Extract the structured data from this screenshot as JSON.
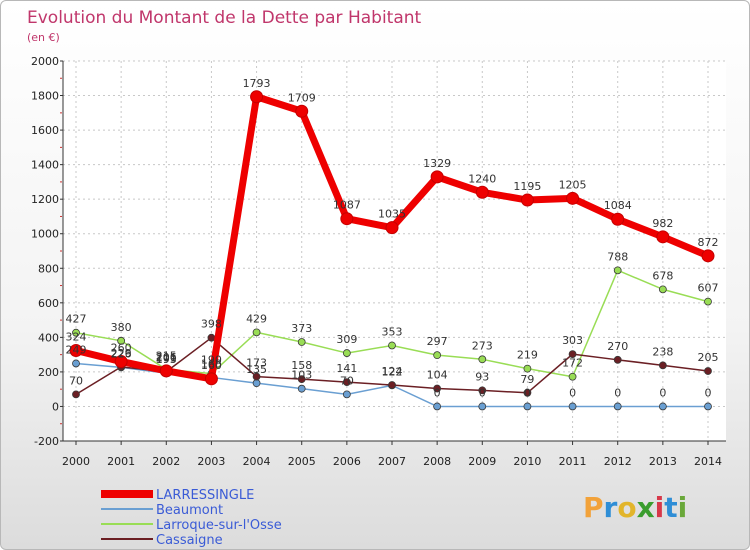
{
  "title": "Evolution du Montant de la Dette par Habitant",
  "subtitle": "(en €)",
  "brand": {
    "name": "Proxiti",
    "letters": [
      {
        "ch": "P",
        "color": "#f2a23a"
      },
      {
        "ch": "r",
        "color": "#2f8ed6"
      },
      {
        "ch": "o",
        "color": "#e2b52b"
      },
      {
        "ch": "x",
        "color": "#3a9d2e"
      },
      {
        "ch": "i",
        "color": "#d7384a"
      },
      {
        "ch": "t",
        "color": "#2f8ed6"
      },
      {
        "ch": "i",
        "color": "#6aa83a"
      }
    ]
  },
  "chart_data": {
    "type": "line",
    "title": "Evolution du Montant de la Dette par Habitant",
    "ylabel": "(en €)",
    "xlabel": "",
    "ylim": [
      -200,
      2000
    ],
    "yticks": [
      -200,
      0,
      200,
      400,
      600,
      800,
      1000,
      1200,
      1400,
      1600,
      1800,
      2000
    ],
    "grid": true,
    "categories": [
      "2000",
      "2001",
      "2002",
      "2003",
      "2004",
      "2005",
      "2006",
      "2007",
      "2008",
      "2009",
      "2010",
      "2011",
      "2012",
      "2013",
      "2014"
    ],
    "series": [
      {
        "name": "LARRESSINGLE",
        "color": "#ee0000",
        "lineWidth": 7,
        "marker": 6,
        "values": [
          324,
          260,
          206,
          160,
          1793,
          1709,
          1087,
          1035,
          1329,
          1240,
          1195,
          1205,
          1084,
          982,
          872
        ],
        "labels": [
          "324",
          "260",
          "206",
          "160",
          "1793",
          "1709",
          "1087",
          "1035",
          "1329",
          "1240",
          "1195",
          "1205",
          "1084",
          "982",
          "872"
        ]
      },
      {
        "name": "Beaumont",
        "color": "#6a9fd2",
        "lineWidth": 1.5,
        "marker": 3.5,
        "values": [
          249,
          226,
          193,
          168,
          135,
          103,
          70,
          122,
          0,
          0,
          0,
          0,
          0,
          0,
          0
        ],
        "labels": [
          "249",
          "226",
          "193",
          "168",
          "135",
          "103",
          "70",
          "122",
          "0",
          "0",
          "0",
          "0",
          "0",
          "0",
          "0"
        ]
      },
      {
        "name": "Larroque-sur-l'Osse",
        "color": "#99dd55",
        "lineWidth": 1.5,
        "marker": 3.5,
        "values": [
          427,
          380,
          215,
          190,
          429,
          373,
          309,
          353,
          297,
          273,
          219,
          172,
          788,
          678,
          607
        ],
        "labels": [
          "427",
          "380",
          "215",
          "190",
          "429",
          "373",
          "309",
          "353",
          "297",
          "273",
          "219",
          "172",
          "788",
          "678",
          "607"
        ]
      },
      {
        "name": "Cassaigne",
        "color": "#6b1f24",
        "lineWidth": 1.5,
        "marker": 3.5,
        "values": [
          70,
          229,
          201,
          398,
          173,
          158,
          141,
          124,
          104,
          93,
          79,
          303,
          270,
          238,
          205
        ],
        "labels": [
          "70",
          "229",
          "201",
          "398",
          "173",
          "158",
          "141",
          "124",
          "104",
          "93",
          "79",
          "303",
          "270",
          "238",
          "205"
        ]
      }
    ],
    "legend_position": "bottom-left"
  }
}
